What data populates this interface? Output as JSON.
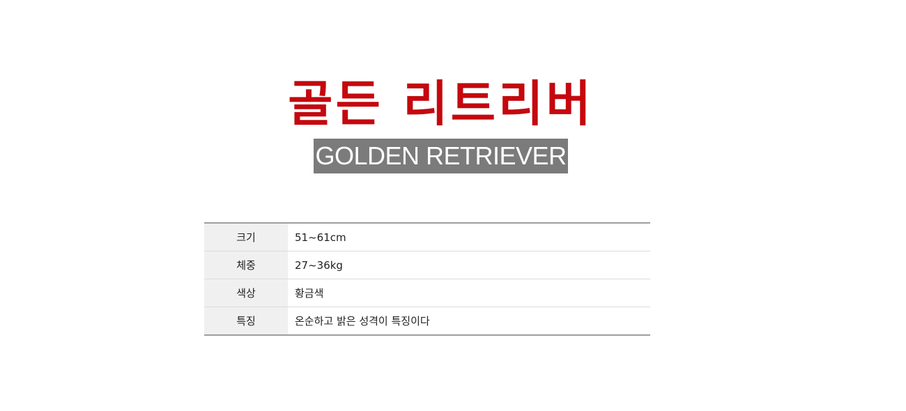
{
  "title_ko": "골든 리트리버",
  "title_en": "GOLDEN RETRIEVER",
  "colors": {
    "title": "#c4080e",
    "subtitle_bg": "#7b7b7b",
    "label_bg": "#f0f0f0",
    "table_border": "#9e9e9e"
  },
  "specs": [
    {
      "label": "크기",
      "value": "51~61cm"
    },
    {
      "label": "체중",
      "value": "27~36kg"
    },
    {
      "label": "색상",
      "value": "황금색"
    },
    {
      "label": "특징",
      "value": "온순하고 밝은 성격이 특징이다"
    }
  ]
}
